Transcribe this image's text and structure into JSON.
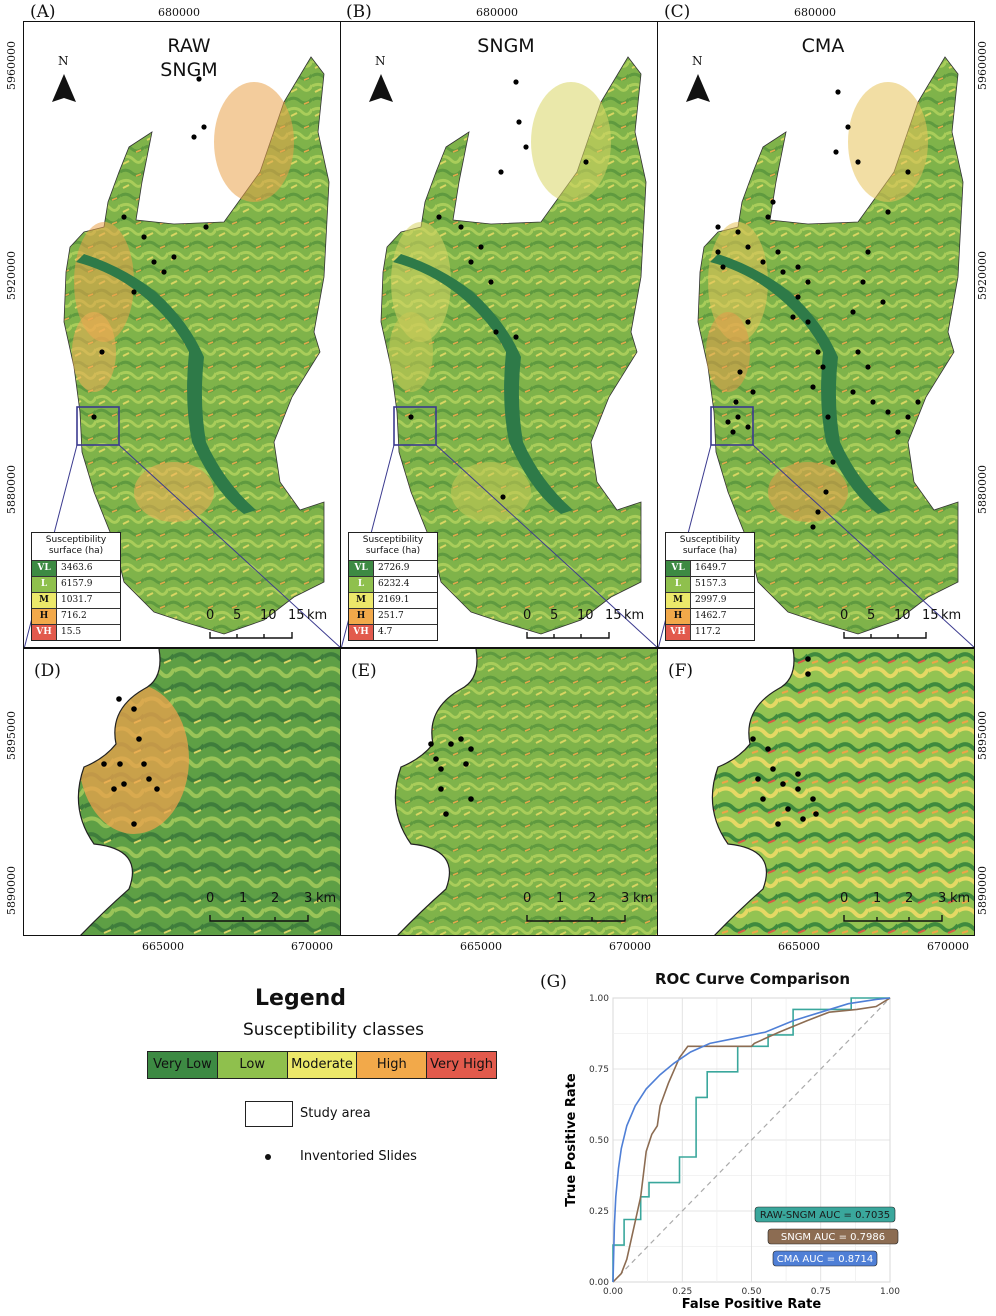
{
  "colors": {
    "very_low": "#3d8a43",
    "low": "#8fc04d",
    "moderate": "#ece86a",
    "high": "#f2a94a",
    "very_high": "#e25a4c",
    "zoom_box": "#3b3a8f",
    "raw_sngm": "#3aa79c",
    "sngm": "#8c6c52",
    "cma": "#4f7fd6"
  },
  "panels": {
    "A": {
      "letter": "(A)",
      "title": "RAW\nSNGM",
      "coord_top": "680000",
      "table": {
        "header": "Susceptibility\nsurface (ha)",
        "rows": [
          {
            "cls": "VL",
            "val": "3463.6"
          },
          {
            "cls": "L",
            "val": "6157.9"
          },
          {
            "cls": "M",
            "val": "1031.7"
          },
          {
            "cls": "H",
            "val": "716.2"
          },
          {
            "cls": "VH",
            "val": "15.5"
          }
        ]
      }
    },
    "B": {
      "letter": "(B)",
      "title": "SNGM",
      "coord_top": "680000",
      "table": {
        "header": "Susceptibility\nsurface (ha)",
        "rows": [
          {
            "cls": "VL",
            "val": "2726.9"
          },
          {
            "cls": "L",
            "val": "6232.4"
          },
          {
            "cls": "M",
            "val": "2169.1"
          },
          {
            "cls": "H",
            "val": "251.7"
          },
          {
            "cls": "VH",
            "val": "4.7"
          }
        ]
      }
    },
    "C": {
      "letter": "(C)",
      "title": "CMA",
      "coord_top": "680000",
      "table": {
        "header": "Susceptibility\nsurface (ha)",
        "rows": [
          {
            "cls": "VL",
            "val": "1649.7"
          },
          {
            "cls": "L",
            "val": "5157.3"
          },
          {
            "cls": "M",
            "val": "2997.9"
          },
          {
            "cls": "H",
            "val": "1462.7"
          },
          {
            "cls": "VH",
            "val": "117.2"
          }
        ]
      }
    },
    "D": {
      "letter": "(D)"
    },
    "E": {
      "letter": "(E)"
    },
    "F": {
      "letter": "(F)"
    }
  },
  "north_label": "N",
  "left_coords_top": [
    "5960000",
    "5920000",
    "5880000"
  ],
  "right_coords_top": [
    "5960000",
    "5920000",
    "5880000"
  ],
  "left_coords_bottom": [
    "5895000",
    "5890000"
  ],
  "right_coords_bottom": [
    "5895000",
    "5890000"
  ],
  "bottom_coords": [
    "665000",
    "670000"
  ],
  "scale_top": {
    "ticks": [
      "0",
      "5",
      "10",
      "15"
    ],
    "unit": "km"
  },
  "scale_bottom": {
    "ticks": [
      "0",
      "1",
      "2",
      "3"
    ],
    "unit": "km"
  },
  "legend": {
    "title": "Legend",
    "subtitle": "Susceptibility classes",
    "classes": [
      "Very Low",
      "Low",
      "Moderate",
      "High",
      "Very High"
    ],
    "study_area": "Study area",
    "slides": "Inventoried Slides"
  },
  "roc": {
    "letter": "(G)",
    "title": "ROC Curve Comparison",
    "xlabel": "False Positive Rate",
    "ylabel": "True Positive Rate",
    "ticks": [
      "0.00",
      "0.25",
      "0.50",
      "0.75",
      "1.00"
    ],
    "auc_labels": [
      "RAW-SNGM AUC = 0.7035",
      "SNGM AUC = 0.7986",
      "CMA AUC = 0.8714"
    ]
  },
  "chart_data": {
    "type": "line",
    "title": "ROC Curve Comparison",
    "xlabel": "False Positive Rate",
    "ylabel": "True Positive Rate",
    "xlim": [
      0,
      1
    ],
    "ylim": [
      0,
      1
    ],
    "grid": true,
    "series": [
      {
        "name": "RAW-SNGM AUC = 0.7035",
        "points": [
          [
            0,
            0
          ],
          [
            0,
            0.13
          ],
          [
            0.04,
            0.13
          ],
          [
            0.04,
            0.22
          ],
          [
            0.1,
            0.22
          ],
          [
            0.1,
            0.3
          ],
          [
            0.13,
            0.3
          ],
          [
            0.13,
            0.35
          ],
          [
            0.24,
            0.35
          ],
          [
            0.24,
            0.44
          ],
          [
            0.3,
            0.44
          ],
          [
            0.3,
            0.65
          ],
          [
            0.34,
            0.65
          ],
          [
            0.34,
            0.74
          ],
          [
            0.45,
            0.74
          ],
          [
            0.45,
            0.83
          ],
          [
            0.56,
            0.83
          ],
          [
            0.56,
            0.87
          ],
          [
            0.65,
            0.87
          ],
          [
            0.65,
            0.96
          ],
          [
            0.86,
            0.96
          ],
          [
            0.86,
            1
          ],
          [
            1,
            1
          ]
        ]
      },
      {
        "name": "SNGM AUC = 0.7986",
        "points": [
          [
            0,
            0
          ],
          [
            0.03,
            0.03
          ],
          [
            0.05,
            0.08
          ],
          [
            0.1,
            0.3
          ],
          [
            0.12,
            0.46
          ],
          [
            0.14,
            0.52
          ],
          [
            0.16,
            0.55
          ],
          [
            0.17,
            0.62
          ],
          [
            0.2,
            0.7
          ],
          [
            0.24,
            0.79
          ],
          [
            0.27,
            0.83
          ],
          [
            0.5,
            0.83
          ],
          [
            0.51,
            0.84
          ],
          [
            0.6,
            0.88
          ],
          [
            0.7,
            0.92
          ],
          [
            0.78,
            0.95
          ],
          [
            0.88,
            0.96
          ],
          [
            0.95,
            0.97
          ],
          [
            1,
            1
          ]
        ]
      },
      {
        "name": "CMA AUC = 0.8714",
        "points": [
          [
            0,
            0
          ],
          [
            0.005,
            0.2
          ],
          [
            0.01,
            0.3
          ],
          [
            0.02,
            0.4
          ],
          [
            0.03,
            0.47
          ],
          [
            0.05,
            0.55
          ],
          [
            0.08,
            0.62
          ],
          [
            0.12,
            0.68
          ],
          [
            0.17,
            0.73
          ],
          [
            0.22,
            0.77
          ],
          [
            0.28,
            0.81
          ],
          [
            0.35,
            0.84
          ],
          [
            0.45,
            0.86
          ],
          [
            0.55,
            0.88
          ],
          [
            0.65,
            0.92
          ],
          [
            0.75,
            0.95
          ],
          [
            0.85,
            0.98
          ],
          [
            0.95,
            0.995
          ],
          [
            1,
            1
          ]
        ]
      }
    ]
  }
}
